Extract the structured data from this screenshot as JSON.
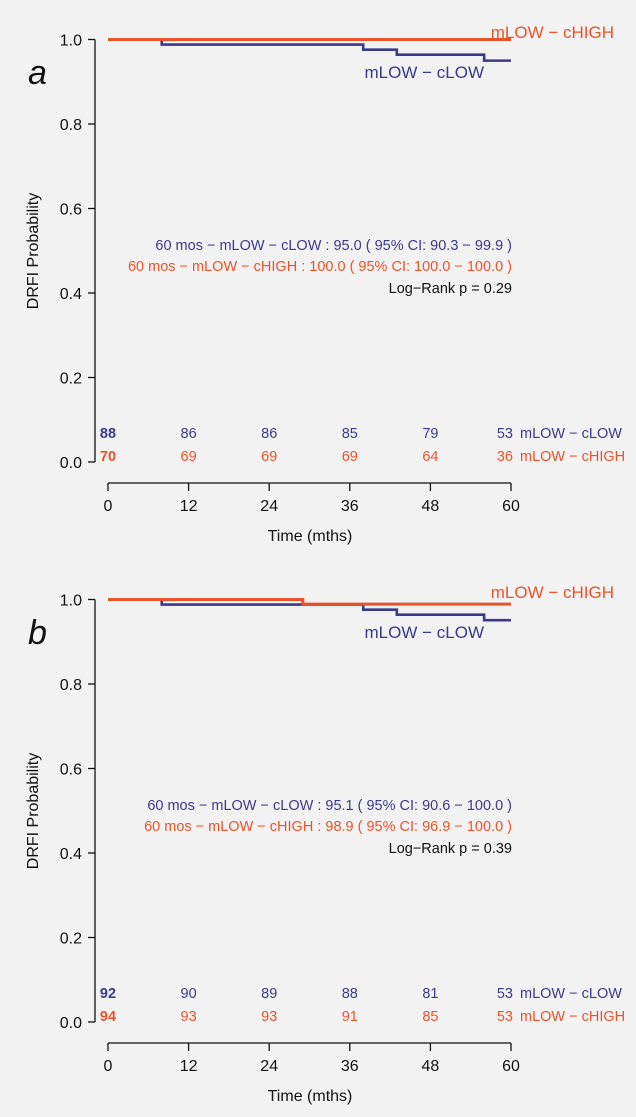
{
  "chart_data": [
    {
      "type": "line",
      "panel_label": "a",
      "xlabel": "Time (mths)",
      "ylabel": "DRFI Probability",
      "xlim": [
        0,
        60
      ],
      "ylim": [
        0,
        1
      ],
      "x_ticks": [
        "0",
        "12",
        "24",
        "36",
        "48",
        "60"
      ],
      "y_ticks": [
        "0.0",
        "0.2",
        "0.4",
        "0.6",
        "0.8",
        "1.0"
      ],
      "series": [
        {
          "name": "mLOW − cLOW",
          "color": "#3a3a8c",
          "x": [
            0,
            8,
            38,
            43,
            56,
            60
          ],
          "y": [
            1.0,
            0.988,
            0.976,
            0.964,
            0.95,
            0.95
          ],
          "at_risk": [
            "88",
            "86",
            "86",
            "85",
            "79",
            "53"
          ]
        },
        {
          "name": "mLOW − cHIGH",
          "color": "#e8542a",
          "x": [
            0,
            60
          ],
          "y": [
            1.0,
            1.0
          ],
          "at_risk": [
            "70",
            "69",
            "69",
            "69",
            "64",
            "36"
          ]
        }
      ],
      "annotations": [
        "60 mos  − mLOW − cLOW : 95.0 ( 95% CI: 90.3 − 99.9 )",
        "60 mos  − mLOW − cHIGH : 100.0 ( 95% CI: 100.0 − 100.0 )",
        "Log−Rank p = 0.29"
      ]
    },
    {
      "type": "line",
      "panel_label": "b",
      "xlabel": "Time (mths)",
      "ylabel": "DRFI Probability",
      "xlim": [
        0,
        60
      ],
      "ylim": [
        0,
        1
      ],
      "x_ticks": [
        "0",
        "12",
        "24",
        "36",
        "48",
        "60"
      ],
      "y_ticks": [
        "0.0",
        "0.2",
        "0.4",
        "0.6",
        "0.8",
        "1.0"
      ],
      "series": [
        {
          "name": "mLOW − cLOW",
          "color": "#3a3a8c",
          "x": [
            0,
            8,
            38,
            43,
            56,
            60
          ],
          "y": [
            1.0,
            0.988,
            0.976,
            0.964,
            0.951,
            0.951
          ],
          "at_risk": [
            "92",
            "90",
            "89",
            "88",
            "81",
            "53"
          ]
        },
        {
          "name": "mLOW − cHIGH",
          "color": "#e8542a",
          "x": [
            0,
            29,
            60
          ],
          "y": [
            1.0,
            0.989,
            0.989
          ],
          "at_risk": [
            "94",
            "93",
            "93",
            "91",
            "85",
            "53"
          ]
        }
      ],
      "annotations": [
        "60 mos  − mLOW − cLOW : 95.1 ( 95% CI: 90.6 − 100.0 )",
        "60 mos  − mLOW − cHIGH : 98.9 ( 95% CI: 96.9 − 100.0 )",
        "Log−Rank p = 0.39"
      ]
    }
  ]
}
